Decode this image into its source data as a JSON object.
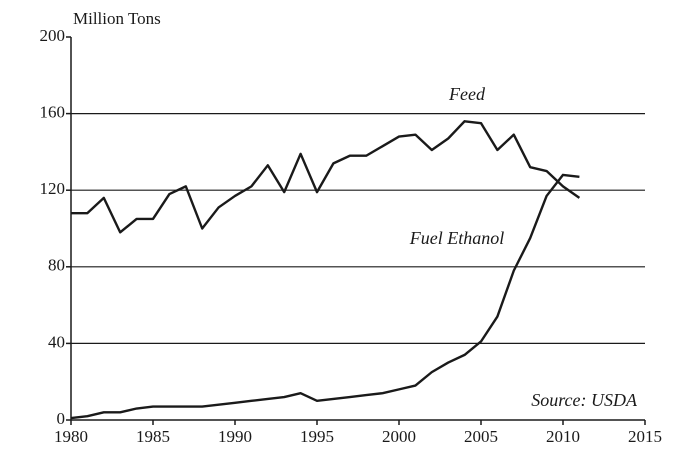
{
  "chart_data": {
    "type": "line",
    "y_axis_label": "Million Tons",
    "annotations": [
      "Feed",
      "Fuel Ethanol",
      "Source: USDA"
    ],
    "x": [
      1980,
      1981,
      1982,
      1983,
      1984,
      1985,
      1986,
      1987,
      1988,
      1989,
      1990,
      1991,
      1992,
      1993,
      1994,
      1995,
      1996,
      1997,
      1998,
      1999,
      2000,
      2001,
      2002,
      2003,
      2004,
      2005,
      2006,
      2007,
      2008,
      2009,
      2010,
      2011
    ],
    "series": [
      {
        "name": "Feed",
        "color": "#1a1a1a",
        "values": [
          108,
          108,
          116,
          98,
          105,
          105,
          118,
          122,
          100,
          111,
          117,
          122,
          133,
          119,
          139,
          119,
          134,
          138,
          138,
          143,
          148,
          149,
          141,
          147,
          156,
          155,
          141,
          149,
          132,
          130,
          122,
          116
        ]
      },
      {
        "name": "Fuel Ethanol",
        "color": "#1a1a1a",
        "values": [
          1,
          2,
          4,
          4,
          6,
          7,
          7,
          7,
          7,
          8,
          9,
          10,
          11,
          12,
          14,
          10,
          11,
          12,
          13,
          14,
          16,
          18,
          25,
          30,
          34,
          41,
          54,
          78,
          95,
          117,
          128,
          127
        ]
      }
    ],
    "xlim": [
      1980,
      2015
    ],
    "xticks": [
      1980,
      1985,
      1990,
      1995,
      2000,
      2005,
      2010,
      2015
    ],
    "ylim": [
      0,
      200
    ],
    "yticks": [
      0,
      40,
      80,
      120,
      160,
      200
    ],
    "grid": true
  }
}
